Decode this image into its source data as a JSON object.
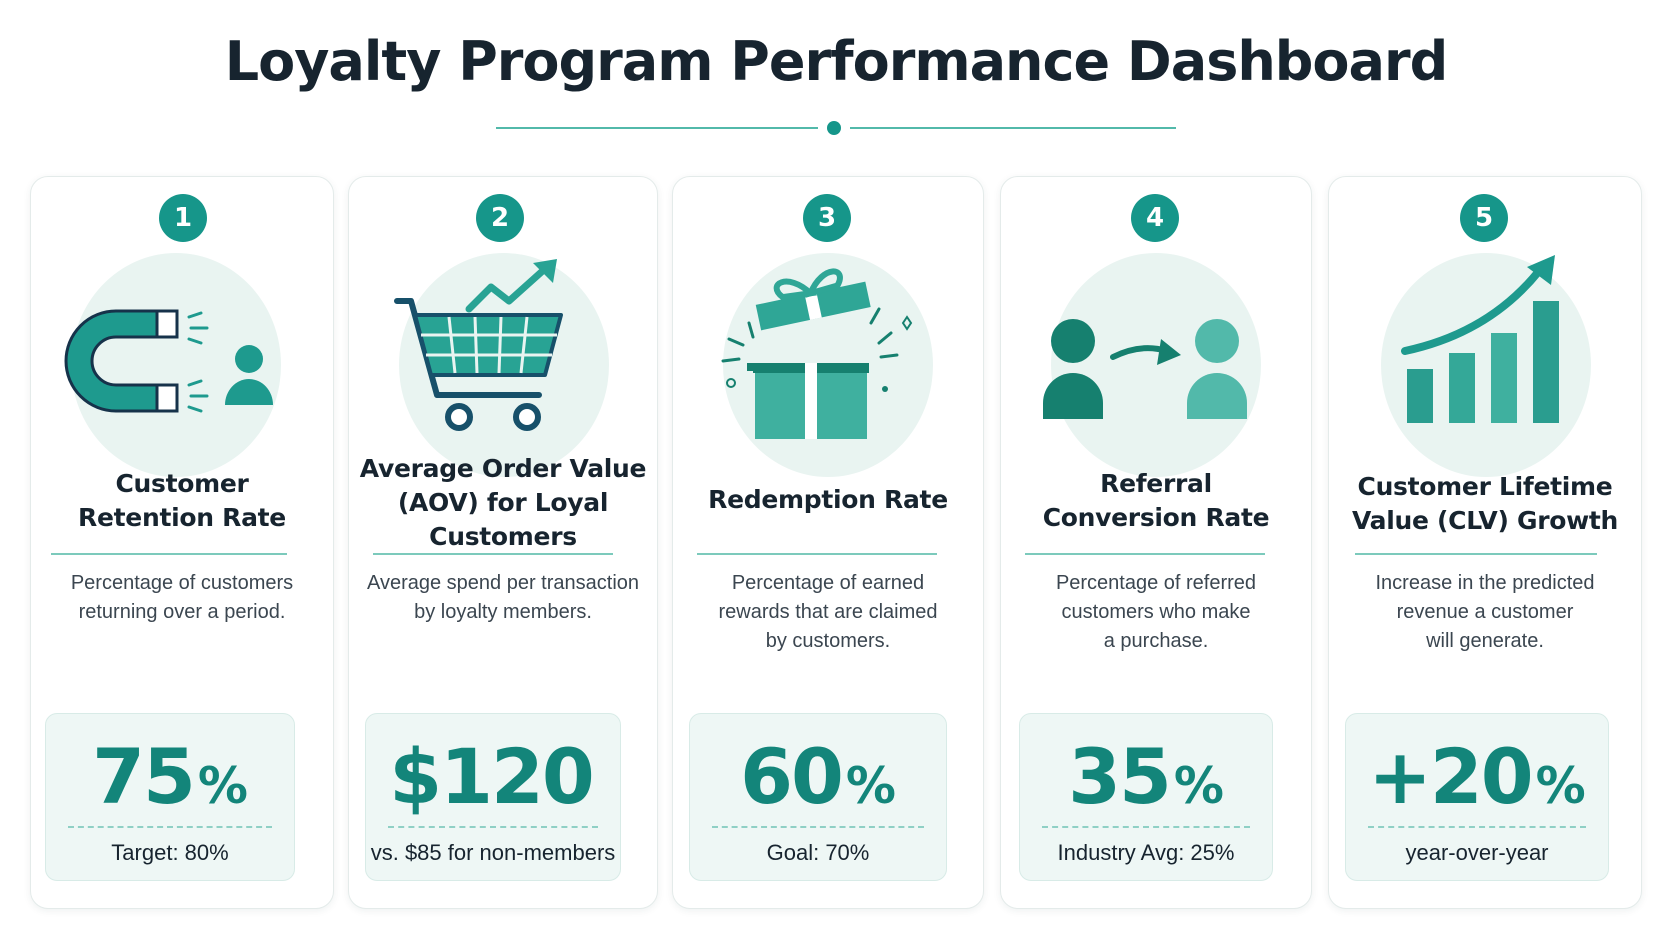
{
  "title": "Loyalty Program Performance Dashboard",
  "colors": {
    "accent": "#16968a",
    "accent_light": "#52b9aa",
    "icon_bg": "#e9f4f1",
    "metric_bg": "#eef7f5",
    "text_dark": "#17242f"
  },
  "cards": [
    {
      "number": "1",
      "icon": "magnet-attract-person-icon",
      "title_lines": [
        "Customer",
        "Retention Rate"
      ],
      "desc_lines": [
        "Percentage of customers",
        "returning over a period."
      ],
      "value": "75",
      "unit": "%",
      "note": "Target: 80%"
    },
    {
      "number": "2",
      "icon": "shopping-cart-growth-icon",
      "title_lines": [
        "Average Order Value",
        "(AOV) for Loyal",
        "Customers"
      ],
      "desc_lines": [
        "Average spend per transaction",
        "by loyalty members."
      ],
      "value": "$120",
      "unit": "",
      "note": "vs. $85 for non-members"
    },
    {
      "number": "3",
      "icon": "gift-box-icon",
      "title_lines": [
        "Redemption Rate"
      ],
      "desc_lines": [
        "Percentage of earned",
        "rewards that are claimed",
        "by customers."
      ],
      "value": "60",
      "unit": "%",
      "note": "Goal: 70%"
    },
    {
      "number": "4",
      "icon": "referral-people-icon",
      "title_lines": [
        "Referral",
        "Conversion Rate"
      ],
      "desc_lines": [
        "Percentage of referred",
        "customers who make",
        "a purchase."
      ],
      "value": "35",
      "unit": "%",
      "note": "Industry Avg: 25%"
    },
    {
      "number": "5",
      "icon": "bar-chart-growth-icon",
      "title_lines": [
        "Customer Lifetime",
        "Value (CLV) Growth"
      ],
      "desc_lines": [
        "Increase in the predicted",
        "revenue a customer",
        "will generate."
      ],
      "value": "+20",
      "unit": "%",
      "note": "year-over-year"
    }
  ]
}
